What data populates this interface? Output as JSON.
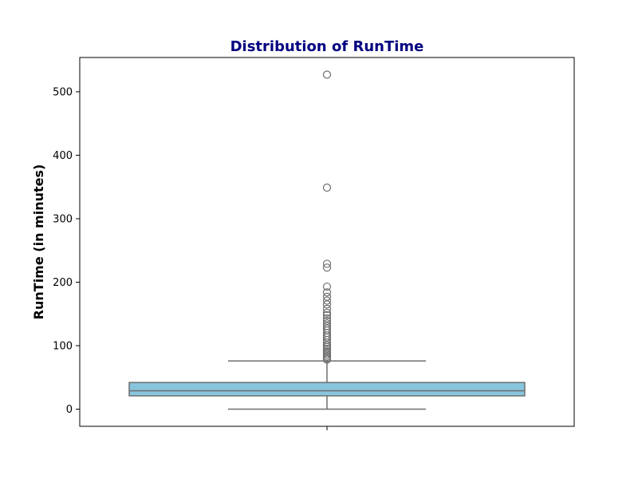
{
  "chart_data": {
    "type": "box",
    "title": "Distribution of RunTime",
    "xlabel": "",
    "ylabel": "RunTime (in minutes)",
    "ylim": [
      -27,
      554
    ],
    "yticks": [
      0,
      100,
      200,
      300,
      400,
      500
    ],
    "grid": false,
    "box": {
      "min_whisker": 0,
      "q1": 21,
      "median": 29,
      "q3": 42,
      "max_whisker": 76,
      "outliers": [
        527,
        349,
        229,
        223,
        193,
        184,
        177,
        171,
        165,
        158,
        152,
        148,
        143,
        139,
        135,
        131,
        127,
        124,
        120,
        116,
        113,
        109,
        105,
        101,
        98,
        95,
        92,
        89,
        86,
        83,
        80,
        78
      ]
    },
    "colors": {
      "box_fill": "#87c5dc",
      "box_edge": "#6e6e6e",
      "title": "#000080",
      "outlier_edge": "#6e6e6e"
    }
  }
}
